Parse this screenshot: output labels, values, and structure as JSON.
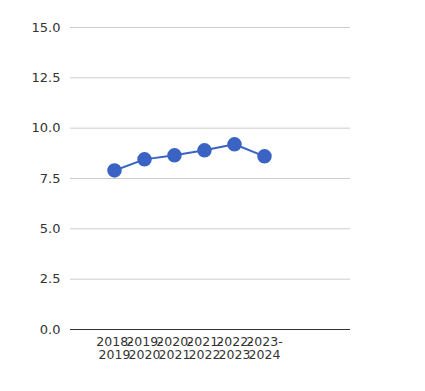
{
  "chart_data": {
    "type": "line",
    "categories": [
      "2018-2019",
      "2019-2020",
      "2020-2021",
      "2021-2022",
      "2022-2023",
      "2023-2024"
    ],
    "values": [
      7.9,
      8.45,
      8.65,
      8.9,
      9.2,
      8.6
    ],
    "color": "#3a63c4",
    "marker": "circle",
    "ylim": [
      0,
      15
    ],
    "yticks": [
      {
        "value": 0,
        "label": "0.0"
      },
      2.5,
      {
        "value": 5,
        "label": "5.0"
      },
      7.5,
      {
        "value": 10,
        "label": "10.0"
      },
      12.5,
      {
        "value": 15,
        "label": "15.0"
      }
    ],
    "grid": true
  }
}
